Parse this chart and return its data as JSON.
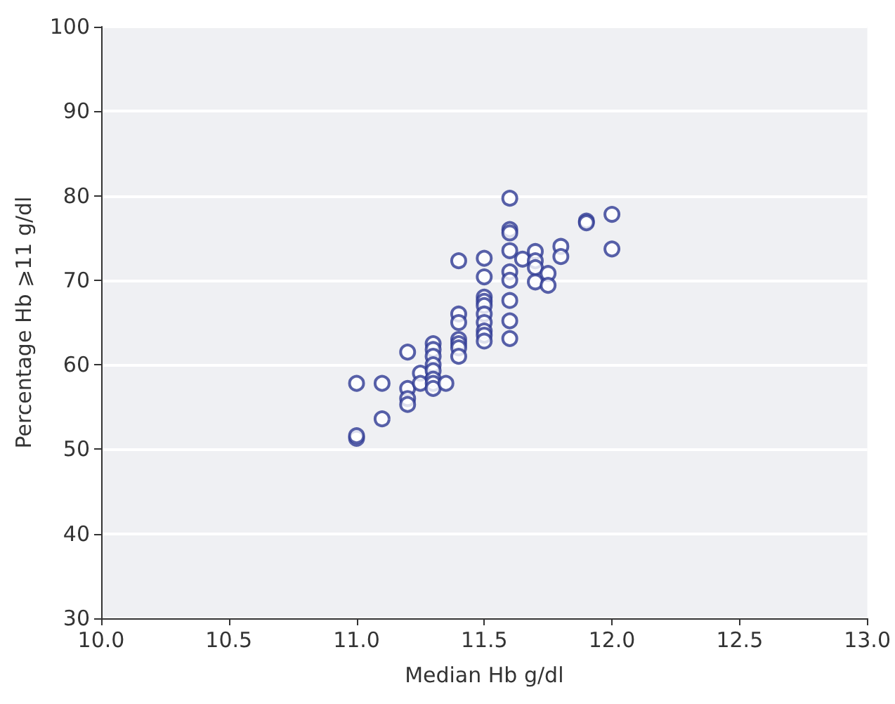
{
  "chart_data": {
    "type": "scatter",
    "xlabel": "Median Hb g/dl",
    "ylabel": "Percentage Hb ⩾11 g/dl",
    "x": [
      11.0,
      11.0,
      11.0,
      11.1,
      11.1,
      11.2,
      11.2,
      11.2,
      11.2,
      11.25,
      11.25,
      11.3,
      11.3,
      11.3,
      11.3,
      11.3,
      11.3,
      11.3,
      11.3,
      11.35,
      11.4,
      11.4,
      11.4,
      11.4,
      11.4,
      11.4,
      11.4,
      11.5,
      11.5,
      11.5,
      11.5,
      11.5,
      11.5,
      11.5,
      11.5,
      11.5,
      11.5,
      11.6,
      11.6,
      11.6,
      11.6,
      11.6,
      11.6,
      11.6,
      11.6,
      11.6,
      11.65,
      11.7,
      11.7,
      11.7,
      11.7,
      11.75,
      11.75,
      11.8,
      11.8,
      11.9,
      11.9,
      12.0,
      12.0
    ],
    "series": [
      {
        "color": "#2e3a93",
        "values": [
          51.3,
          51.6,
          57.8,
          57.8,
          53.6,
          61.5,
          57.2,
          56.0,
          55.3,
          59.0,
          57.8,
          62.5,
          61.8,
          61.0,
          60.0,
          59.3,
          58.3,
          57.8,
          57.2,
          57.8,
          72.3,
          66.0,
          65.0,
          63.0,
          62.5,
          62.0,
          61.0,
          72.6,
          70.4,
          68.0,
          67.5,
          67.0,
          66.0,
          65.0,
          64.0,
          63.5,
          62.8,
          79.7,
          76.0,
          75.6,
          73.5,
          71.0,
          70.0,
          67.6,
          65.2,
          63.1,
          72.5,
          73.4,
          72.3,
          71.5,
          69.8,
          70.8,
          69.4,
          74.0,
          72.8,
          77.0,
          76.8,
          77.8,
          73.7
        ]
      }
    ],
    "xlim": [
      10.0,
      13.0
    ],
    "xticks": [
      {
        "value": 10,
        "label": "10.0"
      },
      10.5,
      {
        "value": 11,
        "label": "11.0"
      },
      11.5,
      {
        "value": 12,
        "label": "12.0"
      },
      12.5,
      {
        "value": 13,
        "label": "13.0"
      }
    ],
    "ylim": [
      30,
      100
    ],
    "yticks": [
      30,
      40,
      50,
      60,
      70,
      80,
      90,
      100
    ],
    "grid": "y",
    "marker": "circle"
  }
}
